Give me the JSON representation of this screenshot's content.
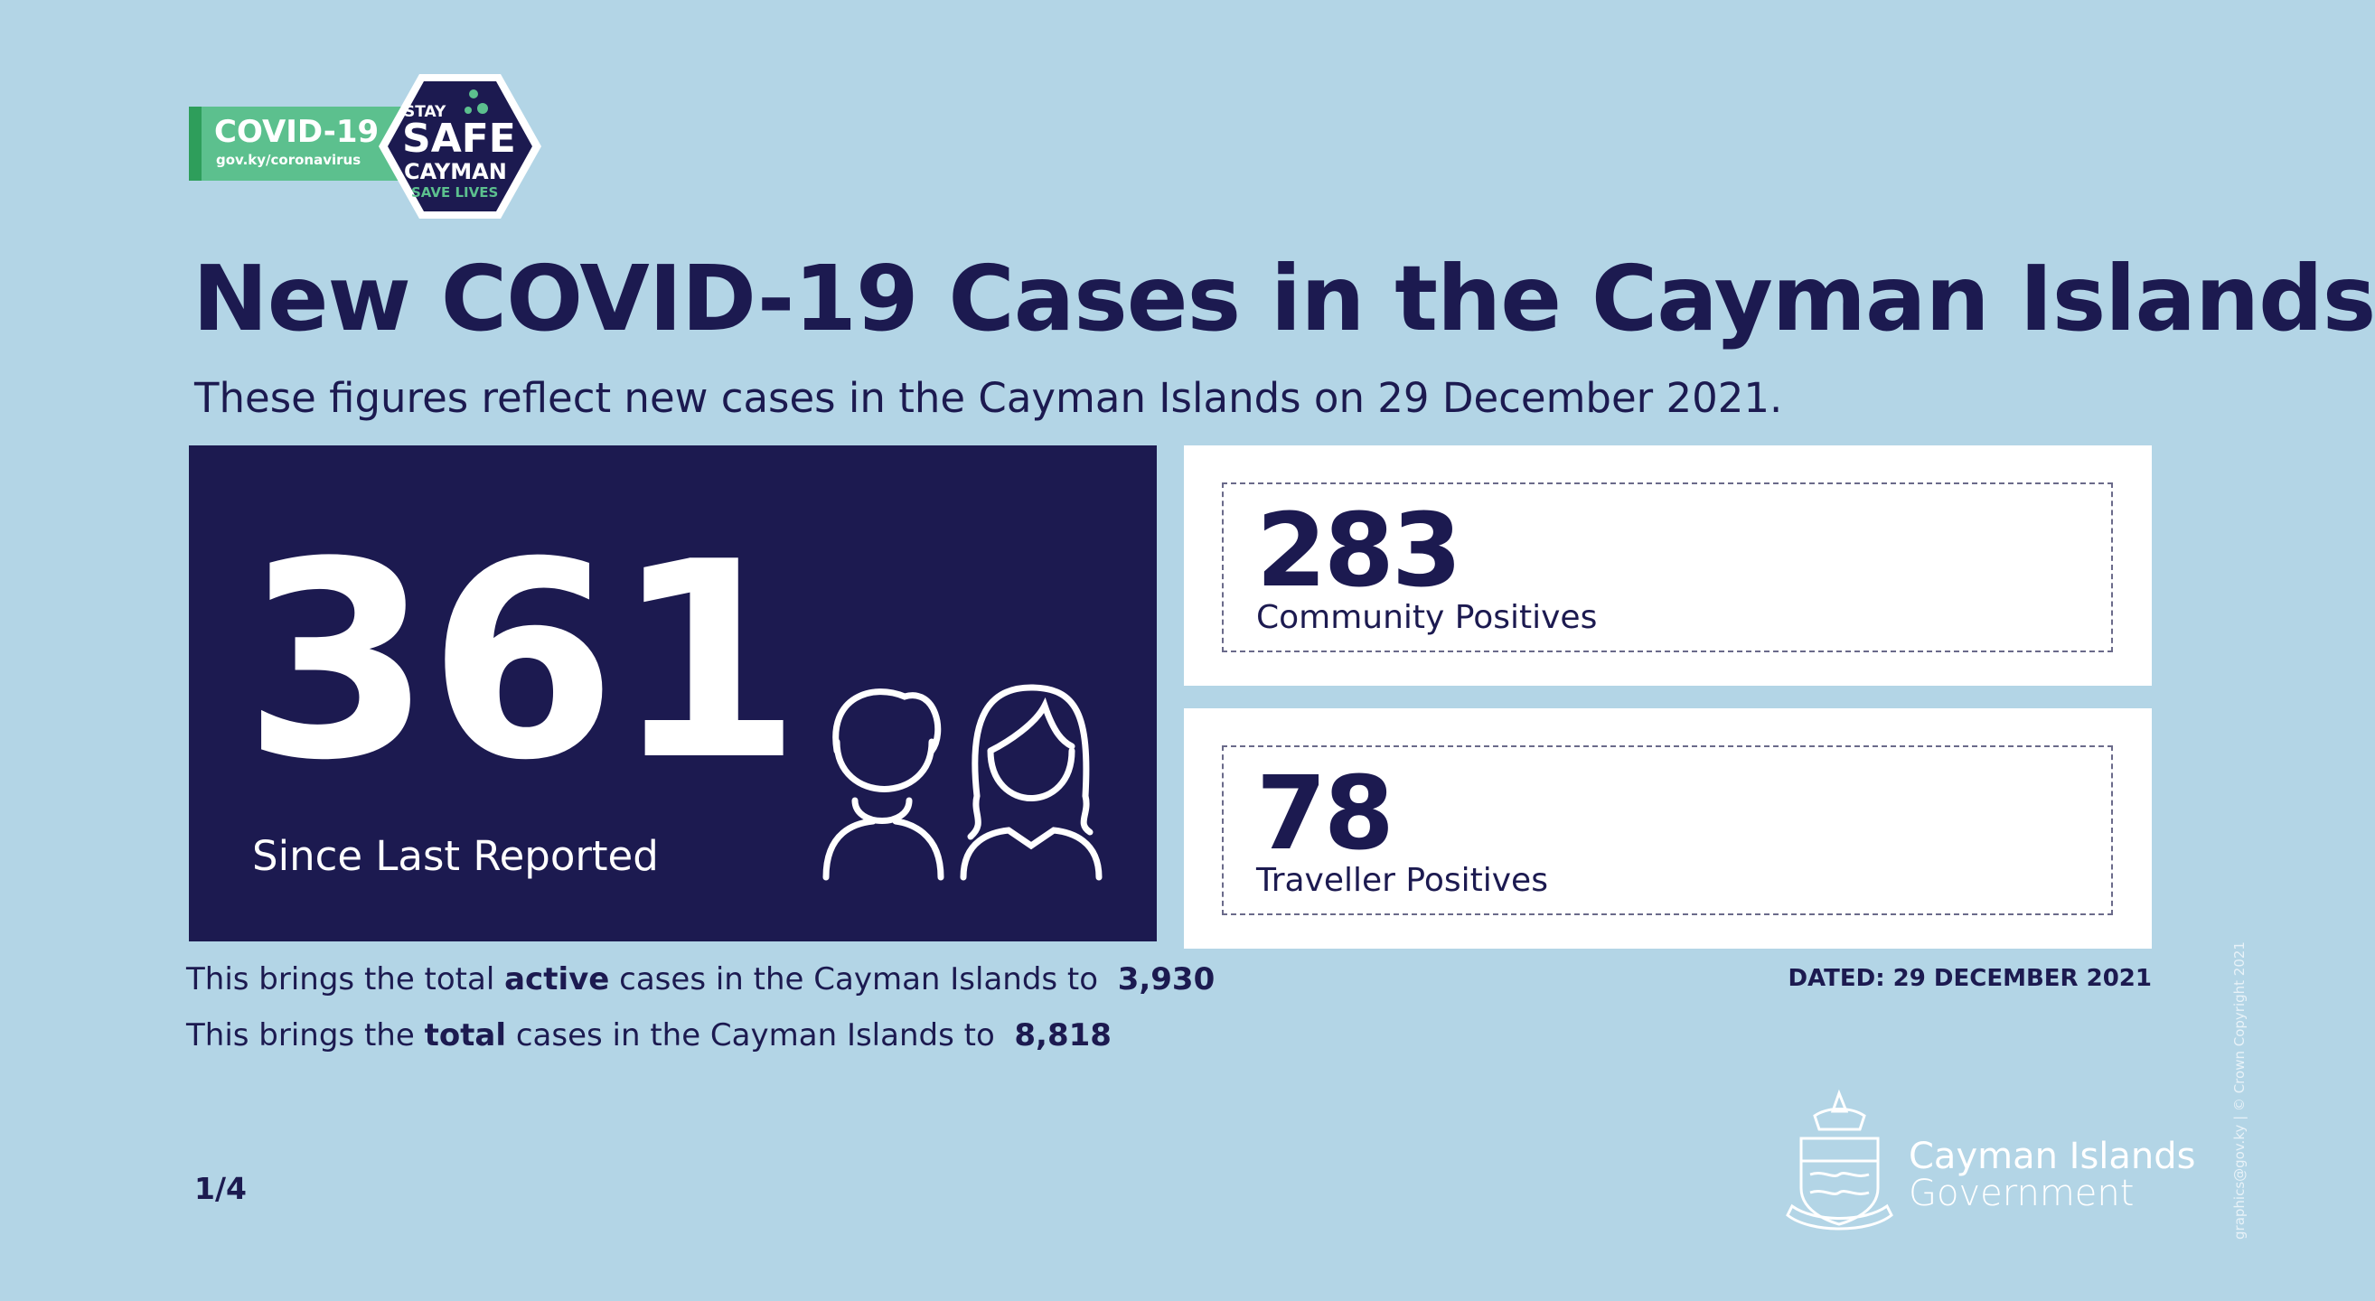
{
  "logo": {
    "label": "COVID-19",
    "url": "gov.ky/coronavirus",
    "stay": "STAY",
    "safe": "SAFE",
    "cayman": "CAYMAN",
    "save": "SAVE LIVES"
  },
  "header": {
    "title": "New COVID-19 Cases in the Cayman Islands",
    "subtitle": "These figures reflect new cases in the Cayman Islands on 29 December 2021."
  },
  "main": {
    "number": "361",
    "label": "Since Last Reported"
  },
  "cards": [
    {
      "number": "283",
      "label": "Community Positives"
    },
    {
      "number": "78",
      "label": "Traveller Positives"
    }
  ],
  "totals": [
    {
      "prefix": "This brings the total",
      "bold": "active",
      "suffix": "cases in the Cayman Islands to",
      "value": "3,930"
    },
    {
      "prefix": "This brings the",
      "bold": "total",
      "suffix": "cases in the Cayman Islands to",
      "value": "8,818"
    }
  ],
  "dated": "DATED: 29 DECEMBER 2021",
  "page": "1/4",
  "government": {
    "line1": "Cayman Islands",
    "line2": "Government"
  },
  "credit": "graphics@gov.ky | © Crown Copyright 2021"
}
